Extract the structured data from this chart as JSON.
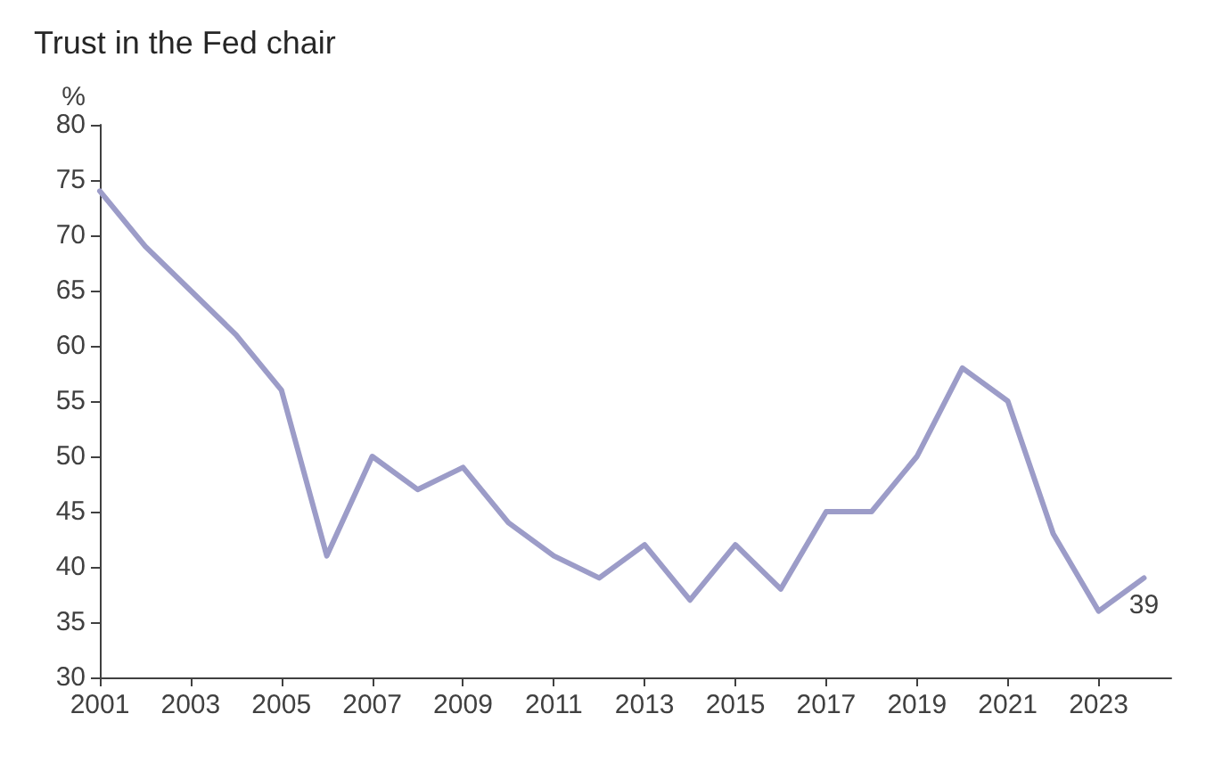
{
  "chart_data": {
    "type": "line",
    "title": "Trust in the Fed chair",
    "ylabel": "%",
    "x": [
      2001,
      2002,
      2003,
      2004,
      2005,
      2006,
      2007,
      2008,
      2009,
      2010,
      2011,
      2012,
      2013,
      2014,
      2015,
      2016,
      2017,
      2018,
      2019,
      2020,
      2021,
      2022,
      2023,
      2024
    ],
    "series": [
      {
        "color": "#9c9cc8",
        "values": [
          74,
          69,
          65,
          61,
          56,
          41,
          50,
          47,
          49,
          44,
          41,
          39,
          42,
          37,
          42,
          38,
          45,
          45,
          50,
          58,
          55,
          43,
          36,
          39
        ],
        "value_labels": [
          null,
          null,
          null,
          null,
          null,
          null,
          null,
          null,
          null,
          null,
          null,
          null,
          null,
          null,
          null,
          null,
          null,
          null,
          null,
          null,
          null,
          null,
          null,
          "39"
        ]
      }
    ],
    "xlim": [
      2001,
      2024.6
    ],
    "xticks": [
      2001,
      2003,
      2005,
      2007,
      2009,
      2011,
      2013,
      2015,
      2017,
      2019,
      2021,
      2023
    ],
    "ylim": [
      30,
      80
    ],
    "yticks": [
      30,
      35,
      40,
      45,
      50,
      55,
      60,
      65,
      70,
      75,
      80
    ],
    "grid": false,
    "marker": "none",
    "line_style": "solid"
  }
}
